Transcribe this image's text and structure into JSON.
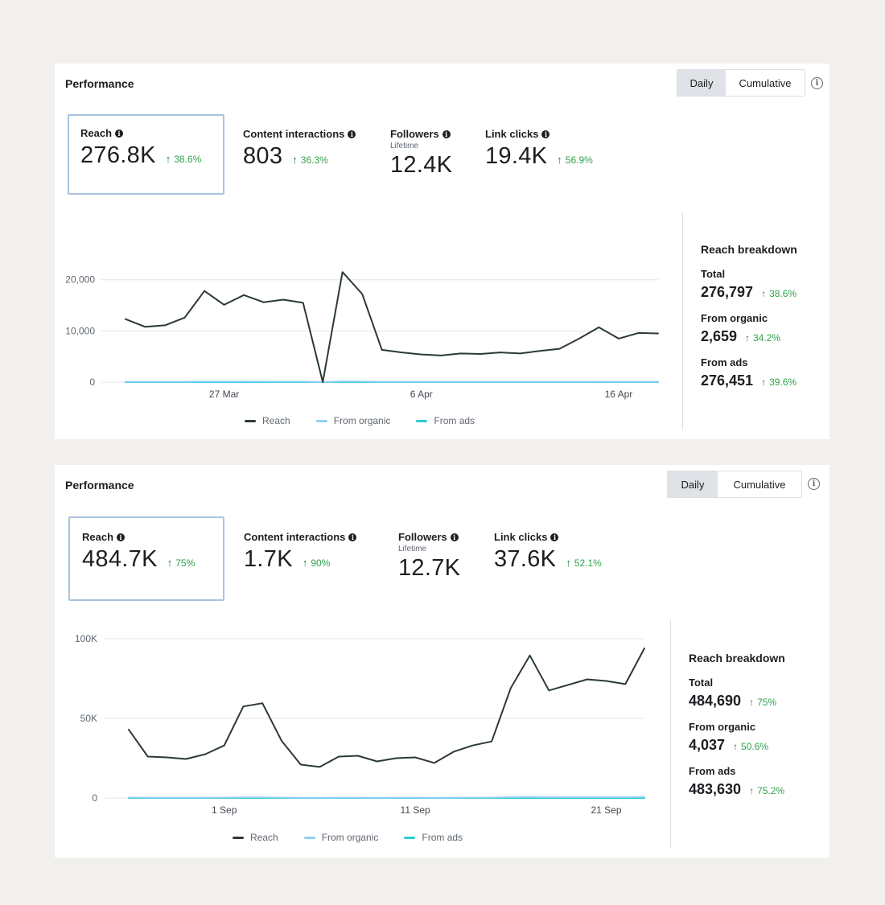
{
  "colors": {
    "reach": "#2b3a35",
    "organic": "#8fd0f2",
    "ads": "#2ecbd6",
    "positive": "#31a24c",
    "grid": "#e4e6ea"
  },
  "panels": [
    {
      "title": "Performance",
      "toggle": {
        "daily": "Daily",
        "cumulative": "Cumulative"
      },
      "info_icon": "i",
      "metrics": [
        {
          "label": "Reach",
          "value": "276.8K",
          "change": "38.6%",
          "arrow": "↑"
        },
        {
          "label": "Content interactions",
          "value": "803",
          "change": "36.3%",
          "arrow": "↑"
        },
        {
          "label": "Followers",
          "sublabel": "Lifetime",
          "value": "12.4K"
        },
        {
          "label": "Link clicks",
          "value": "19.4K",
          "change": "56.9%",
          "arrow": "↑"
        }
      ],
      "breakdown": {
        "title": "Reach breakdown",
        "items": [
          {
            "label": "Total",
            "value": "276,797",
            "change": "38.6%",
            "arrow": "↑"
          },
          {
            "label": "From organic",
            "value": "2,659",
            "change": "34.2%",
            "arrow": "↑"
          },
          {
            "label": "From ads",
            "value": "276,451",
            "change": "39.6%",
            "arrow": "↑"
          }
        ]
      },
      "legend": [
        "Reach",
        "From organic",
        "From ads"
      ]
    },
    {
      "title": "Performance",
      "toggle": {
        "daily": "Daily",
        "cumulative": "Cumulative"
      },
      "info_icon": "i",
      "metrics": [
        {
          "label": "Reach",
          "value": "484.7K",
          "change": "75%",
          "arrow": "↑"
        },
        {
          "label": "Content interactions",
          "value": "1.7K",
          "change": "90%",
          "arrow": "↑"
        },
        {
          "label": "Followers",
          "sublabel": "Lifetime",
          "value": "12.7K"
        },
        {
          "label": "Link clicks",
          "value": "37.6K",
          "change": "52.1%",
          "arrow": "↑"
        }
      ],
      "breakdown": {
        "title": "Reach breakdown",
        "items": [
          {
            "label": "Total",
            "value": "484,690",
            "change": "75%",
            "arrow": "↑"
          },
          {
            "label": "From organic",
            "value": "4,037",
            "change": "50.6%",
            "arrow": "↑"
          },
          {
            "label": "From ads",
            "value": "483,630",
            "change": "75.2%",
            "arrow": "↑"
          }
        ]
      },
      "legend": [
        "Reach",
        "From organic",
        "From ads"
      ]
    }
  ],
  "chart_data": [
    {
      "type": "line",
      "title": "Reach",
      "xlabel": "",
      "ylabel": "",
      "ylim": [
        0,
        22000
      ],
      "yticks": [
        0,
        10000,
        20000
      ],
      "ytick_labels": [
        "0",
        "10,000",
        "20,000"
      ],
      "x_ticks": [
        {
          "index": 5,
          "label": "27 Mar"
        },
        {
          "index": 15,
          "label": "6 Apr"
        },
        {
          "index": 25,
          "label": "16 Apr"
        }
      ],
      "series": [
        {
          "name": "Reach",
          "values": [
            12300,
            10800,
            11100,
            12600,
            17800,
            15100,
            17000,
            15600,
            16100,
            15500,
            0,
            21500,
            17200,
            6300,
            5800,
            5400,
            5200,
            5600,
            5500,
            5800,
            5600,
            6100,
            6500,
            8500,
            10700,
            8500,
            9600,
            9500
          ]
        },
        {
          "name": "From organic",
          "values": [
            80,
            80,
            80,
            80,
            120,
            100,
            110,
            100,
            100,
            100,
            0,
            140,
            110,
            60,
            60,
            60,
            60,
            60,
            60,
            60,
            60,
            60,
            60,
            70,
            80,
            70,
            70,
            70
          ]
        },
        {
          "name": "From ads",
          "values": [
            0,
            0,
            0,
            0,
            0,
            0,
            0,
            0,
            0,
            0,
            0,
            0,
            0,
            0,
            0,
            0,
            0,
            0,
            0,
            0,
            0,
            0,
            0,
            0,
            0,
            0,
            0,
            0
          ]
        }
      ]
    },
    {
      "type": "line",
      "title": "Reach",
      "xlabel": "",
      "ylabel": "",
      "ylim": [
        0,
        100000
      ],
      "yticks": [
        0,
        50000,
        100000
      ],
      "ytick_labels": [
        "0",
        "50K",
        "100K"
      ],
      "x_ticks": [
        {
          "index": 5,
          "label": "1 Sep"
        },
        {
          "index": 15,
          "label": "11 Sep"
        },
        {
          "index": 25,
          "label": "21 Sep"
        }
      ],
      "series": [
        {
          "name": "Reach",
          "values": [
            43000,
            26000,
            25500,
            24500,
            27500,
            33000,
            57500,
            59500,
            36000,
            21000,
            19500,
            26000,
            26500,
            23000,
            25000,
            25500,
            22000,
            29000,
            33000,
            35500,
            69000,
            89500,
            67500,
            71000,
            74500,
            73500,
            71500,
            94000
          ]
        },
        {
          "name": "From organic",
          "values": [
            300,
            200,
            200,
            200,
            200,
            250,
            400,
            400,
            250,
            150,
            150,
            200,
            200,
            150,
            200,
            200,
            150,
            200,
            250,
            250,
            500,
            600,
            450,
            500,
            500,
            500,
            500,
            650
          ]
        },
        {
          "name": "From ads",
          "values": [
            0,
            0,
            0,
            0,
            0,
            0,
            0,
            0,
            0,
            0,
            0,
            0,
            0,
            0,
            0,
            0,
            0,
            0,
            0,
            0,
            0,
            0,
            0,
            0,
            0,
            0,
            0,
            0
          ]
        }
      ]
    }
  ]
}
